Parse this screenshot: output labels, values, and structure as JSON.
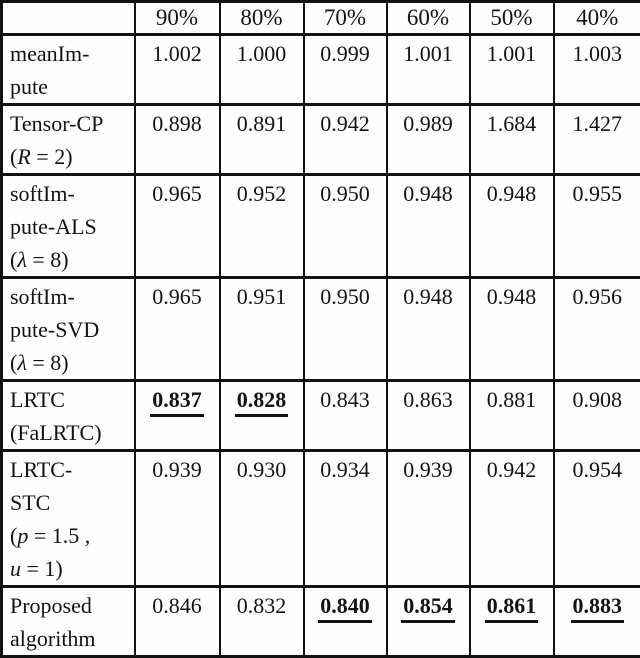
{
  "table": {
    "description": "Paper results table comparing completion algorithms across missing-rate percentages; bold underlined values mark best results",
    "header": [
      "",
      "90%",
      "80%",
      "70%",
      "60%",
      "50%",
      "40%"
    ],
    "rows": [
      {
        "label": "meanImpute",
        "label_lines": [
          [
            {
              "t": "meanIm-"
            }
          ],
          [
            {
              "t": "pute"
            }
          ]
        ],
        "values": [
          "1.002",
          "1.000",
          "0.999",
          "1.001",
          "1.001",
          "1.003"
        ],
        "emph": [
          false,
          false,
          false,
          false,
          false,
          false
        ]
      },
      {
        "label": "Tensor-CP (R = 2)",
        "label_lines": [
          [
            {
              "t": "Tensor-CP"
            }
          ],
          [
            {
              "t": "("
            },
            {
              "t": "R",
              "i": true
            },
            {
              "t": " = 2)"
            }
          ]
        ],
        "values": [
          "0.898",
          "0.891",
          "0.942",
          "0.989",
          "1.684",
          "1.427"
        ],
        "emph": [
          false,
          false,
          false,
          false,
          false,
          false
        ]
      },
      {
        "label": "softImpute-ALS (λ = 8)",
        "label_lines": [
          [
            {
              "t": "softIm-"
            }
          ],
          [
            {
              "t": "pute-ALS"
            }
          ],
          [
            {
              "t": "("
            },
            {
              "t": "λ",
              "i": true
            },
            {
              "t": " = 8)"
            }
          ]
        ],
        "values": [
          "0.965",
          "0.952",
          "0.950",
          "0.948",
          "0.948",
          "0.955"
        ],
        "emph": [
          false,
          false,
          false,
          false,
          false,
          false
        ]
      },
      {
        "label": "softImpute-SVD (λ = 8)",
        "label_lines": [
          [
            {
              "t": "softIm-"
            }
          ],
          [
            {
              "t": "pute-SVD"
            }
          ],
          [
            {
              "t": "("
            },
            {
              "t": "λ",
              "i": true
            },
            {
              "t": " = 8)"
            }
          ]
        ],
        "values": [
          "0.965",
          "0.951",
          "0.950",
          "0.948",
          "0.948",
          "0.956"
        ],
        "emph": [
          false,
          false,
          false,
          false,
          false,
          false
        ]
      },
      {
        "label": "LRTC (FaLRTC)",
        "label_lines": [
          [
            {
              "t": "LRTC"
            }
          ],
          [
            {
              "t": "(FaLRTC)"
            }
          ]
        ],
        "values": [
          "0.837",
          "0.828",
          "0.843",
          "0.863",
          "0.881",
          "0.908"
        ],
        "emph": [
          true,
          true,
          false,
          false,
          false,
          false
        ]
      },
      {
        "label": "LRTC-STC (p = 1.5, u = 1)",
        "label_lines": [
          [
            {
              "t": "LRTC-"
            }
          ],
          [
            {
              "t": "STC"
            }
          ],
          [
            {
              "t": "("
            },
            {
              "t": "p",
              "i": true
            },
            {
              "t": " = 1.5 ,"
            }
          ],
          [
            {
              "t": "u",
              "i": true
            },
            {
              "t": " = 1)"
            }
          ]
        ],
        "values": [
          "0.939",
          "0.930",
          "0.934",
          "0.939",
          "0.942",
          "0.954"
        ],
        "emph": [
          false,
          false,
          false,
          false,
          false,
          false
        ]
      },
      {
        "label": "Proposed algorithm",
        "label_lines": [
          [
            {
              "t": "Proposed"
            }
          ],
          [
            {
              "t": "algorithm"
            }
          ]
        ],
        "values": [
          "0.846",
          "0.832",
          "0.840",
          "0.854",
          "0.861",
          "0.883"
        ],
        "emph": [
          false,
          false,
          true,
          true,
          true,
          true
        ]
      }
    ]
  }
}
